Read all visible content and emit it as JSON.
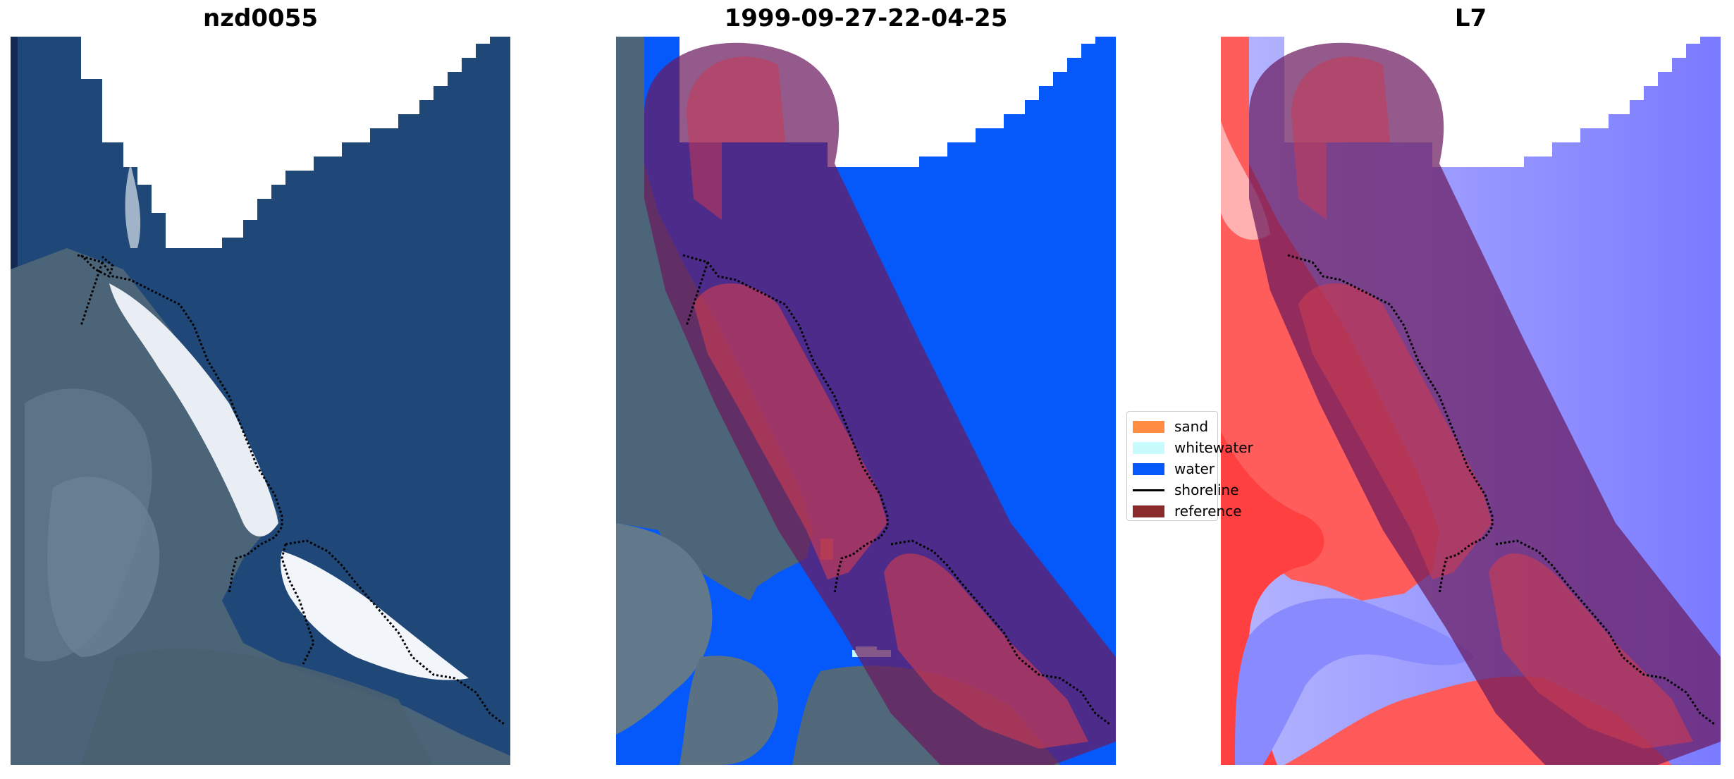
{
  "panels": [
    {
      "title": "nzd0055"
    },
    {
      "title": "1999-09-27-22-04-25"
    },
    {
      "title": "L7"
    }
  ],
  "legend": {
    "items": [
      {
        "label": "sand",
        "color": "#ff8c40",
        "kind": "patch"
      },
      {
        "label": "whitewater",
        "color": "#c8fcfc",
        "kind": "patch"
      },
      {
        "label": "water",
        "color": "#0558fa",
        "kind": "patch"
      },
      {
        "label": "shoreline",
        "color": "#000000",
        "kind": "line"
      },
      {
        "label": "reference",
        "color": "#8b2a2a",
        "kind": "patch"
      }
    ]
  },
  "colors": {
    "ocean": "#1f4778",
    "water_class": "#0558fa",
    "overlay_buffer": "#6a1b5e",
    "overlay_reference": "#c83a55",
    "index_red": "#ff3b3b",
    "index_blue": "#7a7aff"
  }
}
